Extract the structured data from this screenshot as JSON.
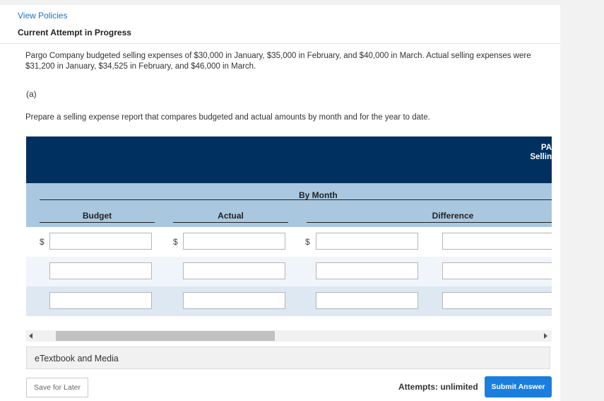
{
  "header": {
    "view_policies": "View Policies",
    "attempt_title": "Current Attempt in Progress"
  },
  "question": {
    "text": "Pargo Company budgeted selling expenses of $30,000 in January, $35,000 in February, and $40,000 in March. Actual selling expenses were $31,200 in January, $34,525 in February, and $46,000 in March.",
    "part": "(a)",
    "instruction": "Prepare a selling expense report that compares budgeted and actual amounts by month and for the year to date."
  },
  "table": {
    "header_line1": "PA",
    "header_line2": "Sellin",
    "group_label": "By Month",
    "columns": [
      "Budget",
      "Actual",
      "Difference"
    ],
    "currency_symbol": "$",
    "rows": [
      {
        "budget": "",
        "actual": "",
        "difference": ""
      },
      {
        "budget": "",
        "actual": "",
        "difference": ""
      },
      {
        "budget": "",
        "actual": "",
        "difference": ""
      }
    ]
  },
  "etextbook": "eTextbook and Media",
  "footer": {
    "save_label": "Save for Later",
    "attempts_label": "Attempts: unlimited",
    "submit_label": "Submit Answer"
  },
  "colors": {
    "dark_header": "#00305f",
    "light_header": "#a9c8e0",
    "accent": "#1a7ede"
  }
}
